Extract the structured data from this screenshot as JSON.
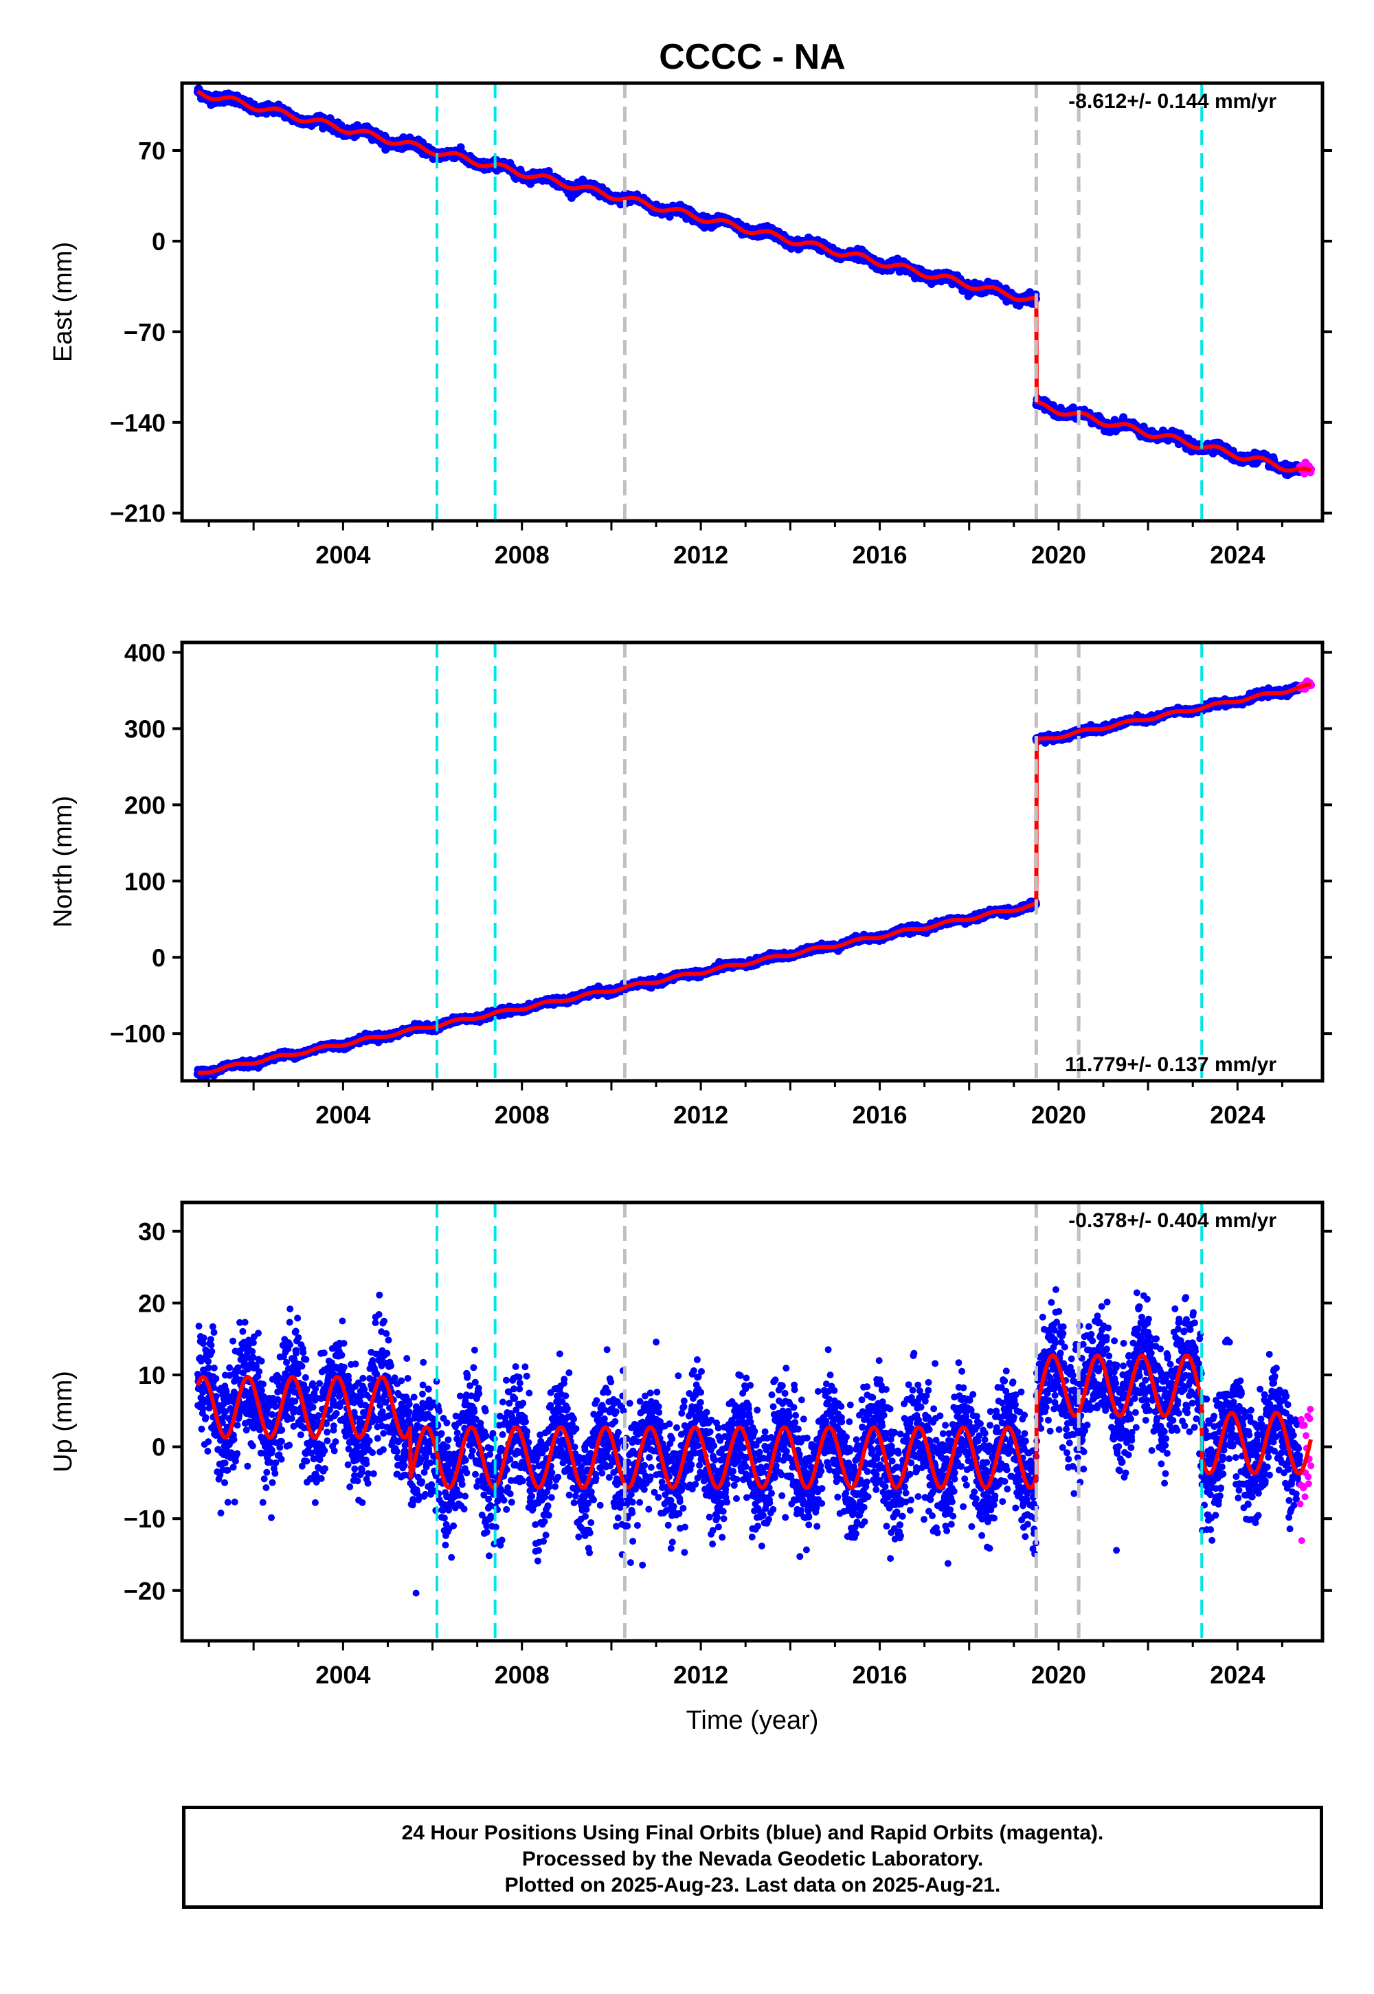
{
  "title": "CCCC - NA",
  "footer": {
    "line1": "24 Hour Positions Using Final Orbits (blue) and Rapid Orbits (magenta).",
    "line2": "Processed by the Nevada Geodetic Laboratory.",
    "line3": "Plotted on 2025-Aug-23. Last data on 2025-Aug-21."
  },
  "colors": {
    "final_orbits": "#0000ff",
    "rapid_orbits": "#ff00ff",
    "model": "#ff0000",
    "equipment_change": "#00e5e5",
    "earthquake": "#c0c0c0"
  },
  "chart_data": [
    {
      "type": "scatter",
      "panel": "east",
      "ylabel": "East (mm)",
      "xlabel": "",
      "xlim": [
        2000.4,
        2025.9
      ],
      "ylim": [
        -216,
        122
      ],
      "yticks": [
        70,
        0,
        -70,
        -140,
        -210
      ],
      "xticks": [
        2004,
        2008,
        2012,
        2016,
        2020,
        2024
      ],
      "rate_label": "-8.612+/- 0.144 mm/yr",
      "rate_position": "top-right",
      "rate_mm_per_yr": -8.612,
      "series": [
        {
          "name": "Final Orbits",
          "color": "#0000ff",
          "start": [
            2000.75,
            115
          ],
          "offsets": [
            {
              "t": 2019.5,
              "dy": -80
            }
          ],
          "last_final": 2025.4,
          "noise": 1.8
        },
        {
          "name": "Rapid Orbits",
          "color": "#ff00ff",
          "range": [
            2025.4,
            2025.64
          ]
        }
      ],
      "seasonal_amp": 2.5,
      "vlines_cyan": [
        2006.1,
        2007.4,
        2023.2
      ],
      "vlines_gray": [
        2010.3,
        2019.5,
        2020.45
      ]
    },
    {
      "type": "scatter",
      "panel": "north",
      "ylabel": "North (mm)",
      "xlabel": "",
      "xlim": [
        2000.4,
        2025.9
      ],
      "ylim": [
        -162,
        413
      ],
      "yticks": [
        400,
        300,
        200,
        100,
        0,
        -100
      ],
      "xticks": [
        2004,
        2008,
        2012,
        2016,
        2020,
        2024
      ],
      "rate_label": "11.779+/- 0.137 mm/yr",
      "rate_position": "bottom-right",
      "rate_mm_per_yr": 11.779,
      "series": [
        {
          "name": "Final Orbits",
          "color": "#0000ff",
          "start": [
            2000.75,
            -152
          ],
          "offsets": [
            {
              "t": 2019.5,
              "dy": 215
            }
          ],
          "last_final": 2025.4,
          "noise": 2.0
        },
        {
          "name": "Rapid Orbits",
          "color": "#ff00ff",
          "range": [
            2025.4,
            2025.64
          ]
        }
      ],
      "seasonal_amp": 2.0,
      "vlines_cyan": [
        2006.1,
        2007.4,
        2023.2
      ],
      "vlines_gray": [
        2010.3,
        2019.5,
        2020.45
      ]
    },
    {
      "type": "scatter",
      "panel": "up",
      "ylabel": "Up (mm)",
      "xlabel": "Time (year)",
      "xlim": [
        2000.4,
        2025.9
      ],
      "ylim": [
        -27,
        34
      ],
      "yticks": [
        30,
        20,
        10,
        0,
        -10,
        -20
      ],
      "xticks": [
        2004,
        2008,
        2012,
        2016,
        2020,
        2024
      ],
      "rate_label": "-0.378+/- 0.404 mm/yr",
      "rate_position": "top-right",
      "rate_mm_per_yr": -0.378,
      "segments": [
        {
          "from": 2000.75,
          "to": 2005.5,
          "mean": 5.5
        },
        {
          "from": 2005.5,
          "to": 2019.5,
          "mean": -1.5
        },
        {
          "from": 2019.5,
          "to": 2023.2,
          "mean": 8.5
        },
        {
          "from": 2023.2,
          "to": 2025.64,
          "mean": 0.5
        }
      ],
      "seasonal_amp": 4.2,
      "noise": 4.0,
      "last_final": 2025.4,
      "rapid_range": [
        2025.4,
        2025.64
      ],
      "vlines_cyan": [
        2006.1,
        2007.4,
        2023.2
      ],
      "vlines_gray": [
        2010.3,
        2019.5,
        2020.45
      ]
    }
  ]
}
